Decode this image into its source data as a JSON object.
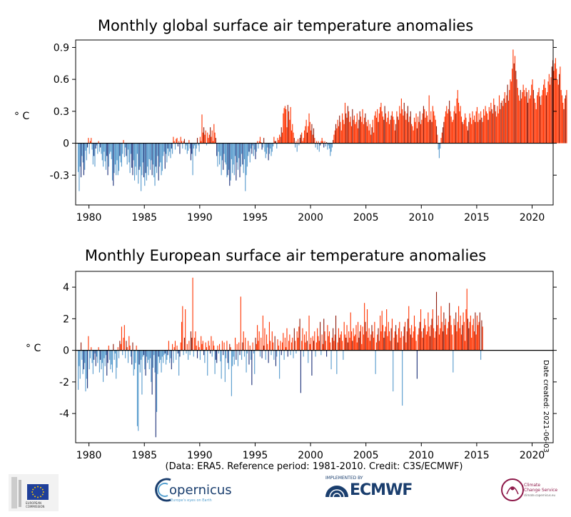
{
  "chart_data": [
    {
      "type": "bar",
      "title": "Monthly global surface air temperature anomalies",
      "ylabel": "° C",
      "ylim": [
        -0.58,
        0.97
      ],
      "yticks": [
        -0.3,
        0,
        0.3,
        0.6,
        0.9
      ],
      "ytick_labels": [
        "-0.3",
        "0",
        "0.3",
        "0.6",
        "0.9"
      ],
      "xlim": [
        1978.8,
        2021.9
      ],
      "xticks": [
        1980,
        1985,
        1990,
        1995,
        2000,
        2005,
        2010,
        2015,
        2020
      ],
      "xtick_labels": [
        "1980",
        "1985",
        "1990",
        "1995",
        "2000",
        "2005",
        "2010",
        "2015",
        "2020"
      ],
      "grid": false,
      "x": "monthly from 1979-01 to 2021-06",
      "values": [
        -0.27,
        -0.45,
        -0.22,
        -0.32,
        -0.12,
        -0.18,
        -0.3,
        -0.25,
        -0.07,
        -0.16,
        -0.04,
        0.05,
        -0.1,
        0.02,
        0.05,
        -0.06,
        -0.2,
        -0.12,
        -0.22,
        -0.05,
        -0.02,
        -0.1,
        0.02,
        -0.08,
        -0.04,
        -0.1,
        -0.16,
        -0.22,
        -0.08,
        -0.17,
        -0.25,
        -0.12,
        -0.3,
        -0.22,
        -0.1,
        -0.08,
        -0.15,
        -0.35,
        -0.4,
        -0.28,
        -0.2,
        -0.3,
        -0.16,
        -0.3,
        -0.26,
        -0.12,
        -0.18,
        -0.22,
        -0.1,
        0.03,
        -0.13,
        -0.04,
        -0.12,
        -0.2,
        -0.06,
        -0.18,
        -0.28,
        -0.1,
        -0.23,
        -0.3,
        -0.16,
        -0.35,
        -0.22,
        -0.3,
        -0.1,
        -0.38,
        -0.25,
        -0.22,
        -0.45,
        -0.3,
        -0.18,
        -0.32,
        -0.4,
        -0.28,
        -0.35,
        -0.22,
        -0.3,
        -0.15,
        -0.25,
        -0.16,
        -0.3,
        -0.2,
        -0.32,
        -0.4,
        -0.22,
        -0.28,
        -0.12,
        -0.35,
        -0.22,
        -0.18,
        -0.3,
        -0.26,
        -0.12,
        -0.08,
        -0.24,
        -0.1,
        -0.18,
        -0.05,
        -0.12,
        -0.08,
        -0.14,
        -0.05,
        -0.1,
        0.06,
        0.02,
        -0.06,
        0.04,
        0.05,
        -0.03,
        0.02,
        -0.1,
        0.06,
        0.02,
        -0.05,
        0.02,
        0.04,
        -0.06,
        -0.02,
        -0.1,
        -0.07,
        0.03,
        -0.05,
        -0.16,
        -0.1,
        -0.3,
        -0.05,
        -0.02,
        -0.12,
        -0.05,
        0.05,
        -0.02,
        -0.08,
        0.06,
        0.02,
        0.27,
        0.1,
        0.15,
        0.08,
        0.12,
        -0.02,
        0.1,
        0.05,
        0.08,
        0.15,
        0.06,
        0.12,
        0.02,
        0.18,
        0.1,
        0.05,
        -0.12,
        -0.22,
        -0.08,
        -0.2,
        -0.12,
        -0.3,
        -0.16,
        -0.25,
        -0.1,
        -0.18,
        -0.2,
        -0.32,
        -0.3,
        -0.25,
        -0.4,
        -0.35,
        -0.15,
        -0.28,
        -0.2,
        -0.3,
        -0.12,
        -0.35,
        -0.18,
        -0.25,
        -0.14,
        -0.32,
        -0.22,
        -0.1,
        -0.2,
        -0.28,
        -0.15,
        -0.45,
        -0.3,
        -0.22,
        -0.12,
        -0.08,
        -0.18,
        -0.05,
        -0.1,
        -0.02,
        -0.12,
        -0.06,
        -0.15,
        -0.08,
        0.02,
        -0.05,
        0.02,
        0.06,
        0.01,
        -0.06,
        -0.04,
        0.05,
        -0.08,
        -0.14,
        -0.1,
        -0.04,
        -0.16,
        -0.1,
        -0.05,
        -0.12,
        -0.08,
        -0.03,
        0.06,
        0.02,
        0.02,
        -0.05,
        0.05,
        0.03,
        0.08,
        0.06,
        0.15,
        0.1,
        0.28,
        0.33,
        0.35,
        0.32,
        0.15,
        0.36,
        0.3,
        0.22,
        0.34,
        0.12,
        0.18,
        0.1,
        0.05,
        -0.04,
        0.02,
        -0.08,
        0.04,
        -0.02,
        0.05,
        0.08,
        0.1,
        0.02,
        0.05,
        0.12,
        0.16,
        0.22,
        0.1,
        0.16,
        0.28,
        0.2,
        0.12,
        0.18,
        0.08,
        0.14,
        0.05,
        -0.04,
        0.02,
        -0.06,
        0.02,
        -0.08,
        -0.02,
        0.02,
        0.05,
        0.02,
        -0.04,
        0.02,
        -0.03,
        0.01,
        -0.06,
        -0.02,
        -0.05,
        -0.12,
        -0.08,
        -0.04,
        0.03,
        0.08,
        0.12,
        0.18,
        0.14,
        0.22,
        0.16,
        0.26,
        0.2,
        0.12,
        0.28,
        0.22,
        0.18,
        0.38,
        0.28,
        0.24,
        0.35,
        0.3,
        0.2,
        0.25,
        0.16,
        0.32,
        0.22,
        0.26,
        0.18,
        0.2,
        0.28,
        0.14,
        0.22,
        0.3,
        0.25,
        0.2,
        0.32,
        0.18,
        0.24,
        0.28,
        0.2,
        0.16,
        0.22,
        0.12,
        0.18,
        0.08,
        0.15,
        0.22,
        0.1,
        0.26,
        0.3,
        0.24,
        0.32,
        0.2,
        0.28,
        0.34,
        0.38,
        0.3,
        0.25,
        0.22,
        0.35,
        0.28,
        0.2,
        0.24,
        0.3,
        0.18,
        0.22,
        0.26,
        0.3,
        0.25,
        0.22,
        0.12,
        0.18,
        0.3,
        0.25,
        0.22,
        0.35,
        0.28,
        0.42,
        0.32,
        0.26,
        0.38,
        0.3,
        0.22,
        0.28,
        0.35,
        0.2,
        0.25,
        0.3,
        0.18,
        0.16,
        0.12,
        0.24,
        0.2,
        0.28,
        0.14,
        0.25,
        0.2,
        0.3,
        0.18,
        0.22,
        0.28,
        0.35,
        0.32,
        0.24,
        0.3,
        0.26,
        0.2,
        0.45,
        0.22,
        0.3,
        0.2,
        0.35,
        0.3,
        0.26,
        0.22,
        0.16,
        0.08,
        -0.06,
        -0.14,
        -0.05,
        0.05,
        0.1,
        0.15,
        0.2,
        0.25,
        0.3,
        0.35,
        0.28,
        0.32,
        0.4,
        0.3,
        0.25,
        0.2,
        0.22,
        0.3,
        0.35,
        0.28,
        0.42,
        0.5,
        0.38,
        0.3,
        0.35,
        0.25,
        0.2,
        0.18,
        0.22,
        0.28,
        0.24,
        0.16,
        0.12,
        0.2,
        0.28,
        0.24,
        0.18,
        0.3,
        0.22,
        0.26,
        0.2,
        0.3,
        0.34,
        0.2,
        0.28,
        0.22,
        0.3,
        0.24,
        0.2,
        0.32,
        0.26,
        0.35,
        0.3,
        0.28,
        0.22,
        0.34,
        0.3,
        0.38,
        0.32,
        0.28,
        0.42,
        0.36,
        0.3,
        0.25,
        0.35,
        0.28,
        0.45,
        0.32,
        0.38,
        0.4,
        0.35,
        0.42,
        0.48,
        0.38,
        0.45,
        0.55,
        0.4,
        0.5,
        0.6,
        0.58,
        0.7,
        0.88,
        0.75,
        0.82,
        0.68,
        0.6,
        0.52,
        0.45,
        0.4,
        0.5,
        0.42,
        0.48,
        0.55,
        0.5,
        0.44,
        0.52,
        0.48,
        0.38,
        0.5,
        0.42,
        0.45,
        0.55,
        0.6,
        0.5,
        0.42,
        0.38,
        0.32,
        0.45,
        0.48,
        0.52,
        0.44,
        0.36,
        0.45,
        0.5,
        0.55,
        0.6,
        0.52,
        0.45,
        0.48,
        0.58,
        0.65,
        0.55,
        0.62,
        0.72,
        0.78,
        0.68,
        0.75,
        0.8,
        0.7,
        0.6,
        0.55,
        0.65,
        0.72,
        0.5,
        0.45,
        0.38,
        0.32,
        0.42,
        0.45,
        0.5
      ]
    },
    {
      "type": "bar",
      "title": "Monthly European surface air temperature anomalies",
      "ylabel": "° C",
      "ylim": [
        -5.85,
        5
      ],
      "yticks": [
        -4,
        -2,
        0,
        2,
        4
      ],
      "ytick_labels": [
        "-4",
        "-2",
        "0",
        "2",
        "4"
      ],
      "xlim": [
        1978.8,
        2021.9
      ],
      "xticks": [
        1980,
        1985,
        1990,
        1995,
        2000,
        2005,
        2010,
        2015,
        2020
      ],
      "xtick_labels": [
        "1980",
        "1985",
        "1990",
        "1995",
        "2000",
        "2005",
        "2010",
        "2015",
        "2020"
      ],
      "grid": false,
      "x": "monthly from 1979-01 to 2021-06",
      "values": [
        -2.5,
        -1.0,
        -1.8,
        0.5,
        -0.6,
        -1.5,
        -1.2,
        -0.8,
        -2.6,
        -1.8,
        -2.4,
        0.9,
        -1.2,
        -0.5,
        0.2,
        -0.8,
        -1.5,
        -0.6,
        -0.2,
        -1.0,
        -0.4,
        -0.8,
        0.2,
        -1.4,
        -0.6,
        -1.2,
        -0.8,
        -2.0,
        -0.5,
        -1.0,
        -0.3,
        -1.6,
        -0.8,
        0.3,
        -0.6,
        -1.2,
        -0.9,
        -1.4,
        0.4,
        -0.6,
        -0.2,
        -1.8,
        -1.1,
        0.2,
        -0.5,
        0.6,
        0.4,
        1.5,
        -0.3,
        0.8,
        1.6,
        -0.5,
        0.6,
        0.2,
        -0.8,
        0.9,
        0.3,
        -0.4,
        -0.9,
        0.5,
        -1.6,
        -1.2,
        -0.8,
        0.3,
        -4.8,
        -5.1,
        -0.9,
        -1.4,
        -0.6,
        -2.8,
        -0.4,
        -0.3,
        -1.2,
        -1.6,
        -0.4,
        -0.8,
        -0.6,
        -1.2,
        -0.5,
        -2.0,
        -2.8,
        -1.1,
        -0.3,
        -1.4,
        -5.5,
        -3.9,
        -1.5,
        -0.4,
        -0.8,
        -0.6,
        -1.4,
        -0.4,
        -0.8,
        -0.3,
        -0.2,
        -0.9,
        -0.6,
        -0.3,
        0.6,
        -0.8,
        -0.5,
        -1.2,
        0.4,
        -0.8,
        0.2,
        0.6,
        -0.6,
        0.3,
        -0.2,
        -1.6,
        -0.4,
        0.5,
        1.8,
        2.8,
        -0.3,
        0.8,
        2.6,
        -0.2,
        0.4,
        -0.6,
        0.6,
        -0.3,
        1.2,
        0.8,
        4.6,
        -0.4,
        0.8,
        1.2,
        0.3,
        -0.5,
        0.6,
        0.2,
        -0.6,
        0.9,
        0.4,
        0.6,
        -0.3,
        -0.8,
        0.5,
        0.2,
        -1.6,
        0.6,
        0.3,
        -0.2,
        0.9,
        -0.4,
        0.6,
        0.3,
        -1.5,
        -0.6,
        -0.8,
        0.3,
        -0.2,
        0.4,
        -0.7,
        -1.8,
        0.6,
        -0.3,
        0.5,
        -2.0,
        -0.5,
        0.6,
        -0.8,
        -1.2,
        0.4,
        0.2,
        -2.9,
        -1.0,
        -0.4,
        -0.9,
        0.8,
        -0.6,
        0.4,
        -1.0,
        0.5,
        -0.3,
        3.4,
        -0.6,
        0.5,
        1.2,
        -0.4,
        0.8,
        -1.4,
        -0.2,
        0.6,
        -0.9,
        0.3,
        -0.6,
        -2.2,
        0.5,
        -0.2,
        -1.5,
        0.8,
        0.4,
        1.6,
        0.6,
        1.2,
        -0.4,
        0.8,
        -0.5,
        2.2,
        0.3,
        1.4,
        -0.6,
        1.0,
        0.4,
        -0.8,
        1.8,
        0.6,
        -0.3,
        1.2,
        0.5,
        -0.6,
        0.9,
        -1.0,
        -0.4,
        0.7,
        0.3,
        -1.8,
        0.6,
        -0.3,
        0.5,
        1.1,
        -0.6,
        0.8,
        0.2,
        1.4,
        -0.4,
        0.6,
        1.0,
        -0.3,
        0.5,
        0.8,
        -0.5,
        1.4,
        0.6,
        -0.2,
        1.2,
        0.8,
        1.5,
        2.0,
        -2.7,
        0.6,
        1.4,
        -0.4,
        1.0,
        0.5,
        1.2,
        0.6,
        -0.8,
        2.2,
        0.4,
        0.8,
        -1.6,
        0.9,
        0.6,
        1.2,
        -0.4,
        0.5,
        1.4,
        0.9,
        0.6,
        1.8,
        -0.3,
        1.0,
        0.4,
        2.0,
        1.2,
        0.6,
        -0.4,
        1.6,
        0.9,
        1.2,
        0.5,
        -1.2,
        0.8,
        1.4,
        0.6,
        1.0,
        2.2,
        -1.5,
        0.5,
        1.4,
        0.8,
        1.0,
        1.2,
        0.6,
        -0.6,
        1.8,
        1.0,
        0.8,
        1.6,
        0.5,
        1.2,
        0.8,
        2.4,
        1.2,
        0.6,
        1.4,
        0.9,
        1.0,
        1.6,
        0.5,
        1.8,
        0.8,
        1.2,
        1.6,
        0.4,
        1.5,
        1.0,
        3.0,
        1.8,
        1.2,
        2.6,
        0.8,
        1.4,
        0.6,
        1.0,
        1.6,
        1.2,
        0.8,
        1.8,
        -1.5,
        0.5,
        1.0,
        1.4,
        0.6,
        2.2,
        1.2,
        2.5,
        1.6,
        0.8,
        1.2,
        1.5,
        2.6,
        0.9,
        1.8,
        1.2,
        0.6,
        1.4,
        2.0,
        -2.6,
        0.8,
        1.2,
        1.6,
        1.0,
        0.5,
        1.4,
        1.8,
        0.8,
        1.2,
        -3.5,
        0.9,
        1.5,
        1.8,
        0.5,
        1.2,
        2.0,
        2.8,
        1.4,
        1.0,
        1.6,
        0.8,
        1.2,
        2.2,
        1.5,
        0.6,
        -1.8,
        1.0,
        1.4,
        1.8,
        2.6,
        1.2,
        0.8,
        1.4,
        2.0,
        1.6,
        1.0,
        1.2,
        2.4,
        1.5,
        0.9,
        1.6,
        2.0,
        2.6,
        1.4,
        0.8,
        1.2,
        3.7,
        1.6,
        2.2,
        1.0,
        1.4,
        2.8,
        1.8,
        1.2,
        2.4,
        1.6,
        2.0,
        1.0,
        1.4,
        1.8,
        3.0,
        2.2,
        1.6,
        1.0,
        -1.4,
        2.0,
        1.6,
        2.4,
        1.2,
        1.8,
        2.8,
        1.4,
        2.2,
        1.0,
        1.6,
        2.4,
        1.8,
        0.6,
        2.6,
        3.9,
        2.0,
        1.4,
        1.8,
        2.2,
        0.8,
        1.6,
        2.0,
        1.2,
        2.4,
        1.0,
        2.2,
        1.6,
        1.8,
        2.4,
        -0.6,
        1.9,
        1.5
      ]
    }
  ],
  "credit": "(Data: ERA5.  Reference period: 1981-2010.  Credit: C3S/ECMWF)",
  "date_created": "Date created: 2021-06-03",
  "logos": {
    "eu_line1": "EUROPEAN",
    "eu_line2": "COMMISSION",
    "copernicus": "opernicus",
    "copernicus_sub": "Europe's eyes on Earth",
    "ecmwf_tag": "IMPLEMENTED BY",
    "ecmwf": "ECMWF",
    "c3s_line1": "Climate",
    "c3s_line2": "Change Service",
    "c3s_line3": "climate.copernicus.eu"
  },
  "colors": {
    "warm": "#ff3300",
    "warm_dark": "#8c1a0a",
    "cold": "#5599cc",
    "cold_dark": "#1a2f78",
    "axis": "#000000"
  }
}
